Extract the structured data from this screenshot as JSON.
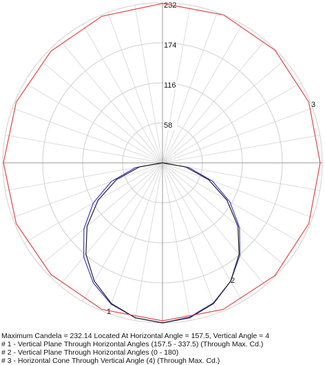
{
  "chart_data": {
    "type": "polar",
    "rlim": [
      0,
      232
    ],
    "rticks": [
      58,
      116,
      174,
      232
    ],
    "grid": true,
    "series": [
      {
        "name": "1",
        "color": "#3b3bd6",
        "angles": [
          -90,
          -80,
          -70,
          -60,
          -50,
          -40,
          -30,
          -20,
          -10,
          0,
          10,
          20,
          30,
          40,
          50,
          60,
          70,
          80,
          90
        ],
        "values": [
          0,
          40,
          79,
          116,
          149,
          178,
          201,
          218,
          228,
          232,
          227,
          216,
          198,
          175,
          146,
          113,
          77,
          39,
          0
        ]
      },
      {
        "name": "2",
        "color": "#222222",
        "angles": [
          -90,
          -80,
          -70,
          -60,
          -50,
          -40,
          -30,
          -20,
          -10,
          0,
          10,
          20,
          30,
          40,
          50,
          60,
          70,
          80,
          90
        ],
        "values": [
          0,
          34,
          71,
          108,
          143,
          173,
          198,
          217,
          228,
          232,
          228,
          217,
          198,
          173,
          143,
          108,
          71,
          34,
          0
        ]
      },
      {
        "name": "3",
        "color": "#e34545",
        "angles": [
          0,
          22.5,
          45,
          67.5,
          90,
          112.5,
          135,
          157.5,
          180,
          202.5,
          225,
          247.5,
          270,
          292.5,
          315,
          337.5
        ],
        "values": [
          229,
          230,
          231,
          230,
          229,
          230,
          231,
          232,
          231,
          230,
          229,
          230,
          231,
          230,
          229,
          230
        ]
      }
    ],
    "notes": [
      "Maximum Candela = 232.14   Located At Horizontal Angle = 157.5, Vertical Angle = 4",
      "# 1 - Vertical Plane Through Horizontal Angles (157.5 - 337.5) (Through Max. Cd.)",
      "# 2 - Vertical Plane Through Horizontal Angles (0 - 180)",
      "# 3 - Horizontal Cone Through Vertical Angle (4) (Through Max. Cd.)"
    ]
  }
}
